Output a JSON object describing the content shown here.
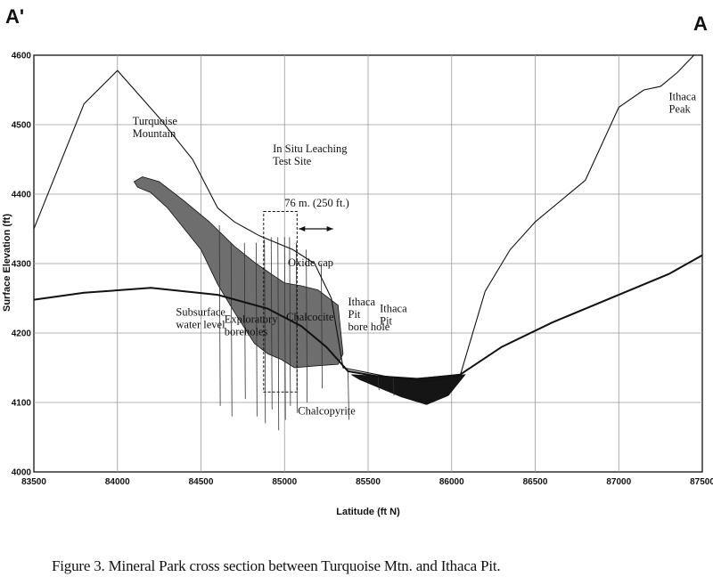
{
  "corner_labels": {
    "left": "A'",
    "right": "A"
  },
  "caption": "Figure 3.  Mineral Park cross section between Turquoise Mtn. and Ithaca Pit.",
  "chart_data": {
    "type": "line",
    "xlabel": "Latitude (ft N)",
    "ylabel": "Surface  Elevation  (ft)",
    "xlim": [
      83500,
      87500
    ],
    "ylim": [
      4000,
      4600
    ],
    "x_ticks": [
      "83500",
      "84000",
      "84500",
      "85000",
      "85500",
      "86000",
      "86500",
      "87000",
      "87500"
    ],
    "y_ticks": [
      "4000",
      "4100",
      "4200",
      "4300",
      "4400",
      "4500",
      "4600"
    ],
    "grid": true,
    "series": [
      {
        "key": "surface",
        "points": [
          [
            83500,
            4350
          ],
          [
            83800,
            4530
          ],
          [
            84000,
            4578
          ],
          [
            84250,
            4510
          ],
          [
            84450,
            4450
          ],
          [
            84600,
            4380
          ],
          [
            84700,
            4360
          ],
          [
            84850,
            4340
          ],
          [
            85050,
            4320
          ],
          [
            85180,
            4300
          ],
          [
            85280,
            4250
          ],
          [
            85350,
            4150
          ],
          [
            85600,
            4138
          ],
          [
            85850,
            4130
          ],
          [
            86050,
            4138
          ],
          [
            86200,
            4260
          ],
          [
            86350,
            4320
          ],
          [
            86500,
            4360
          ],
          [
            86800,
            4420
          ],
          [
            87000,
            4525
          ],
          [
            87150,
            4550
          ],
          [
            87250,
            4555
          ],
          [
            87350,
            4575
          ],
          [
            87450,
            4600
          ]
        ]
      },
      {
        "key": "water_level",
        "points": [
          [
            83500,
            4248
          ],
          [
            83800,
            4258
          ],
          [
            84200,
            4265
          ],
          [
            84600,
            4255
          ],
          [
            84900,
            4235
          ],
          [
            85100,
            4210
          ],
          [
            85250,
            4180
          ],
          [
            85380,
            4145
          ],
          [
            85550,
            4138
          ],
          [
            85800,
            4134
          ],
          [
            86050,
            4140
          ],
          [
            86300,
            4180
          ],
          [
            86600,
            4215
          ],
          [
            87000,
            4255
          ],
          [
            87300,
            4285
          ],
          [
            87500,
            4312
          ]
        ]
      }
    ],
    "zones": [
      {
        "key": "ore_body",
        "color": "#6e6e6e",
        "points": [
          [
            84100,
            4418
          ],
          [
            84150,
            4425
          ],
          [
            84250,
            4418
          ],
          [
            84400,
            4390
          ],
          [
            84550,
            4360
          ],
          [
            84700,
            4325
          ],
          [
            84830,
            4300
          ],
          [
            84920,
            4285
          ],
          [
            85000,
            4272
          ],
          [
            85100,
            4268
          ],
          [
            85200,
            4262
          ],
          [
            85320,
            4240
          ],
          [
            85350,
            4170
          ],
          [
            85320,
            4155
          ],
          [
            85200,
            4153
          ],
          [
            85060,
            4150
          ],
          [
            84980,
            4162
          ],
          [
            84900,
            4170
          ],
          [
            84820,
            4185
          ],
          [
            84700,
            4230
          ],
          [
            84600,
            4270
          ],
          [
            84500,
            4320
          ],
          [
            84400,
            4350
          ],
          [
            84300,
            4380
          ],
          [
            84200,
            4402
          ],
          [
            84120,
            4410
          ]
        ]
      },
      {
        "key": "ithaca_pit",
        "color": "#151515",
        "points": [
          [
            85400,
            4140
          ],
          [
            85550,
            4138
          ],
          [
            85750,
            4134
          ],
          [
            85950,
            4138
          ],
          [
            86080,
            4140
          ],
          [
            85980,
            4110
          ],
          [
            85850,
            4097
          ],
          [
            85700,
            4108
          ],
          [
            85550,
            4123
          ],
          [
            85450,
            4133
          ]
        ]
      }
    ],
    "annotations": [
      {
        "key": "turquoise_mountain",
        "lines": [
          "Turquoise",
          "Mountain"
        ],
        "x": 84090,
        "y": 4500
      },
      {
        "key": "test_site",
        "lines": [
          "In Situ Leaching",
          "Test Site"
        ],
        "x": 84930,
        "y": 4460
      },
      {
        "key": "scale_bar",
        "lines": [
          "76 m. (250  ft.)"
        ],
        "x": 85000,
        "y": 4382
      },
      {
        "key": "oxide_cap",
        "lines": [
          "Oxide cap"
        ],
        "x": 85020,
        "y": 4296
      },
      {
        "key": "subsurface",
        "lines": [
          "Subsurface",
          "water level"
        ],
        "x": 84350,
        "y": 4225
      },
      {
        "key": "boreholes",
        "lines": [
          "Exploratory",
          "boreholes"
        ],
        "x": 84640,
        "y": 4215
      },
      {
        "key": "chalcocite",
        "lines": [
          "Chalcocite"
        ],
        "x": 85010,
        "y": 4218
      },
      {
        "key": "ithaca_pit_bore",
        "lines": [
          "Ithaca",
          "Pit",
          "bore  hole"
        ],
        "x": 85380,
        "y": 4240
      },
      {
        "key": "ithaca_pit",
        "lines": [
          "Ithaca",
          "Pit"
        ],
        "x": 85570,
        "y": 4230
      },
      {
        "key": "chalcopyrite",
        "lines": [
          "Chalcopyrite"
        ],
        "x": 85080,
        "y": 4083
      },
      {
        "key": "ithaca_peak",
        "lines": [
          "Ithaca",
          "Peak"
        ],
        "x": 87300,
        "y": 4535
      }
    ]
  }
}
